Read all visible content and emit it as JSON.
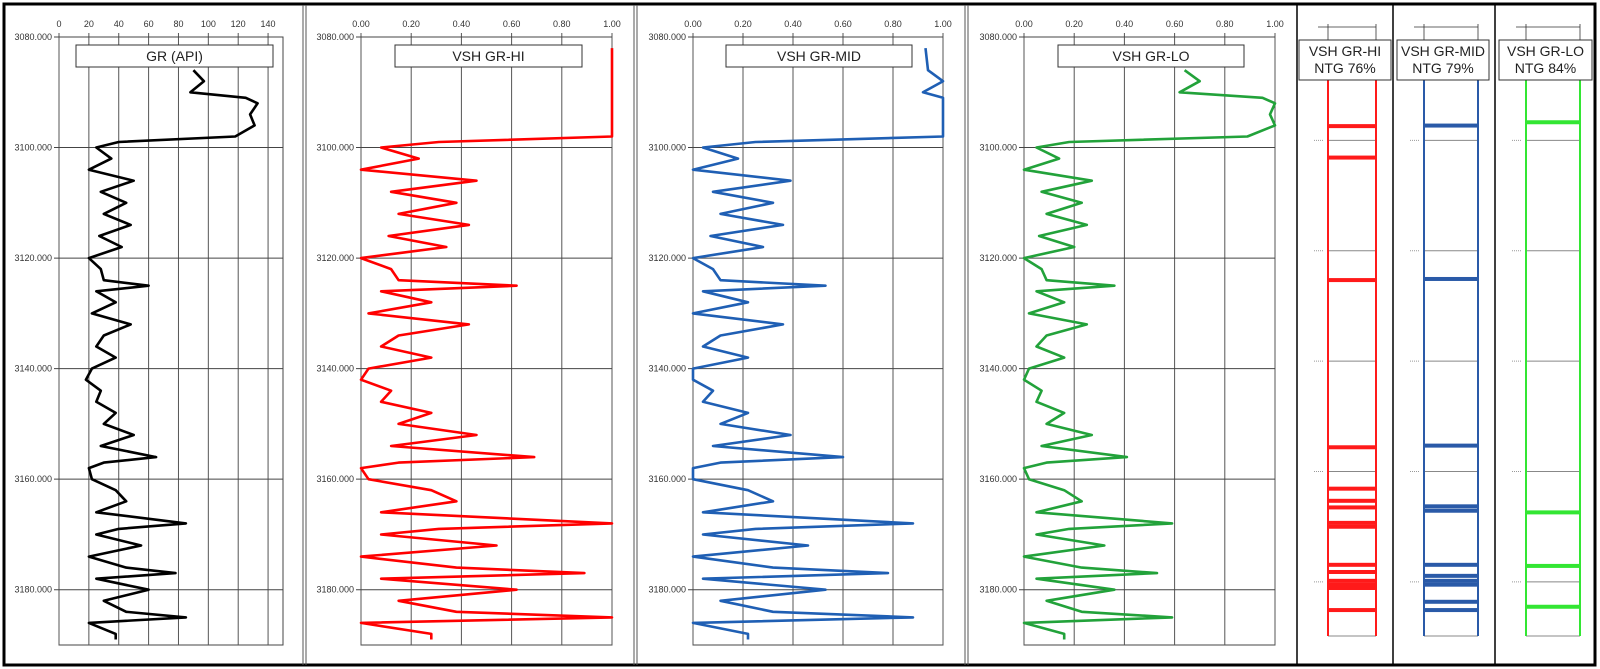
{
  "chart_data": [
    {
      "type": "line",
      "title": "GR (API)",
      "color": "#000000",
      "xlim": [
        0,
        150
      ],
      "xticks": [
        0,
        20,
        40,
        60,
        80,
        100,
        120,
        140
      ],
      "xtick_labels": [
        "0",
        "20",
        "40",
        "60",
        "80",
        "100",
        "120",
        "140"
      ],
      "ylim": [
        3080,
        3190
      ],
      "yticks": [
        3080,
        3100,
        3120,
        3140,
        3160,
        3180
      ],
      "ytick_labels": [
        "3080.000",
        "3100.000",
        "3120.000",
        "3140.000",
        "3160.000",
        "3180.000"
      ],
      "grid": true,
      "depth": [
        3086,
        3088,
        3090,
        3091,
        3092,
        3094,
        3096,
        3098,
        3099,
        3100,
        3102,
        3104,
        3106,
        3108,
        3110,
        3112,
        3114,
        3116,
        3118,
        3120,
        3122,
        3124,
        3125,
        3126,
        3128,
        3130,
        3132,
        3134,
        3136,
        3138,
        3140,
        3142,
        3144,
        3146,
        3148,
        3150,
        3152,
        3154,
        3156,
        3157,
        3158,
        3160,
        3162,
        3164,
        3166,
        3168,
        3169,
        3170,
        3172,
        3174,
        3176,
        3177,
        3178,
        3180,
        3182,
        3184,
        3185,
        3186,
        3188,
        3189
      ],
      "values": [
        90,
        97,
        88,
        125,
        133,
        128,
        131,
        118,
        40,
        25,
        35,
        20,
        50,
        28,
        45,
        30,
        48,
        27,
        42,
        20,
        28,
        30,
        60,
        25,
        38,
        22,
        48,
        30,
        25,
        38,
        22,
        18,
        28,
        25,
        38,
        30,
        50,
        28,
        65,
        30,
        20,
        22,
        38,
        45,
        25,
        85,
        40,
        25,
        55,
        20,
        45,
        78,
        25,
        60,
        30,
        45,
        85,
        20,
        38,
        38
      ]
    },
    {
      "type": "line",
      "title": "VSH GR-HI",
      "color": "#ff0000",
      "xlim": [
        0,
        1
      ],
      "xticks": [
        0,
        0.2,
        0.4,
        0.6,
        0.8,
        1.0
      ],
      "xtick_labels": [
        "0.00",
        "0.20",
        "0.40",
        "0.60",
        "0.80",
        "1.00"
      ],
      "ylim": [
        3080,
        3190
      ],
      "yticks": [
        3080,
        3100,
        3120,
        3140,
        3160,
        3180
      ],
      "ytick_labels": [
        "3080.000",
        "3100.000",
        "3120.000",
        "3140.000",
        "3160.000",
        "3180.000"
      ],
      "grid": true,
      "depth": [
        3082,
        3086,
        3088,
        3090,
        3091,
        3092,
        3094,
        3096,
        3098,
        3099,
        3100,
        3102,
        3104,
        3106,
        3108,
        3110,
        3112,
        3114,
        3116,
        3118,
        3120,
        3122,
        3124,
        3125,
        3126,
        3128,
        3130,
        3132,
        3134,
        3136,
        3138,
        3140,
        3142,
        3144,
        3146,
        3148,
        3150,
        3152,
        3154,
        3156,
        3157,
        3158,
        3160,
        3162,
        3164,
        3166,
        3168,
        3169,
        3170,
        3172,
        3174,
        3176,
        3177,
        3178,
        3180,
        3182,
        3184,
        3185,
        3186,
        3188,
        3189
      ],
      "values": [
        1,
        1,
        1,
        1,
        1,
        1,
        1,
        1,
        1,
        0.31,
        0.08,
        0.23,
        0,
        0.46,
        0.12,
        0.38,
        0.15,
        0.43,
        0.11,
        0.34,
        0,
        0.12,
        0.15,
        0.62,
        0.08,
        0.28,
        0.03,
        0.43,
        0.15,
        0.08,
        0.28,
        0.03,
        0,
        0.12,
        0.08,
        0.28,
        0.15,
        0.46,
        0.12,
        0.69,
        0.15,
        0,
        0.03,
        0.28,
        0.38,
        0.08,
        1,
        0.31,
        0.08,
        0.54,
        0,
        0.38,
        0.89,
        0.08,
        0.62,
        0.15,
        0.38,
        1,
        0,
        0.28,
        0.28
      ]
    },
    {
      "type": "line",
      "title": "VSH GR-MID",
      "color": "#1f5fb4",
      "xlim": [
        0,
        1
      ],
      "xticks": [
        0,
        0.2,
        0.4,
        0.6,
        0.8,
        1.0
      ],
      "xtick_labels": [
        "0.00",
        "0.20",
        "0.40",
        "0.60",
        "0.80",
        "1.00"
      ],
      "ylim": [
        3080,
        3190
      ],
      "yticks": [
        3080,
        3100,
        3120,
        3140,
        3160,
        3180
      ],
      "ytick_labels": [
        "3080.000",
        "3100.000",
        "3120.000",
        "3140.000",
        "3160.000",
        "3180.000"
      ],
      "grid": true,
      "depth": [
        3082,
        3086,
        3088,
        3090,
        3091,
        3092,
        3094,
        3096,
        3098,
        3099,
        3100,
        3102,
        3104,
        3106,
        3108,
        3110,
        3112,
        3114,
        3116,
        3118,
        3120,
        3122,
        3124,
        3125,
        3126,
        3128,
        3130,
        3132,
        3134,
        3136,
        3138,
        3140,
        3142,
        3144,
        3146,
        3148,
        3150,
        3152,
        3154,
        3156,
        3157,
        3158,
        3160,
        3162,
        3164,
        3166,
        3168,
        3169,
        3170,
        3172,
        3174,
        3176,
        3177,
        3178,
        3180,
        3182,
        3184,
        3185,
        3186,
        3188,
        3189
      ],
      "values": [
        0.93,
        0.94,
        1,
        0.92,
        1,
        1,
        1,
        1,
        1,
        0.25,
        0.04,
        0.18,
        0,
        0.39,
        0.08,
        0.32,
        0.11,
        0.36,
        0.07,
        0.28,
        0,
        0.08,
        0.11,
        0.53,
        0.04,
        0.22,
        0,
        0.36,
        0.11,
        0.04,
        0.22,
        0,
        0,
        0.08,
        0.04,
        0.22,
        0.11,
        0.39,
        0.08,
        0.6,
        0.11,
        0,
        0,
        0.22,
        0.32,
        0.04,
        0.88,
        0.25,
        0.04,
        0.46,
        0,
        0.32,
        0.78,
        0.04,
        0.53,
        0.11,
        0.32,
        0.88,
        0,
        0.22,
        0.22
      ]
    },
    {
      "type": "line",
      "title": "VSH GR-LO",
      "color": "#22a23a",
      "xlim": [
        0,
        1
      ],
      "xticks": [
        0,
        0.2,
        0.4,
        0.6,
        0.8,
        1.0
      ],
      "xtick_labels": [
        "0.00",
        "0.20",
        "0.40",
        "0.60",
        "0.80",
        "1.00"
      ],
      "ylim": [
        3080,
        3190
      ],
      "yticks": [
        3080,
        3100,
        3120,
        3140,
        3160,
        3180
      ],
      "ytick_labels": [
        "3080.000",
        "3100.000",
        "3120.000",
        "3140.000",
        "3160.000",
        "3180.000"
      ],
      "grid": true,
      "depth": [
        3086,
        3088,
        3090,
        3091,
        3092,
        3094,
        3096,
        3098,
        3099,
        3100,
        3102,
        3104,
        3106,
        3108,
        3110,
        3112,
        3114,
        3116,
        3118,
        3120,
        3122,
        3124,
        3125,
        3126,
        3128,
        3130,
        3132,
        3134,
        3136,
        3138,
        3140,
        3142,
        3144,
        3146,
        3148,
        3150,
        3152,
        3154,
        3156,
        3157,
        3158,
        3160,
        3162,
        3164,
        3166,
        3168,
        3169,
        3170,
        3172,
        3174,
        3176,
        3177,
        3178,
        3180,
        3182,
        3184,
        3185,
        3186,
        3188,
        3189
      ],
      "values": [
        0.64,
        0.7,
        0.62,
        0.95,
        1,
        0.98,
        1,
        0.89,
        0.18,
        0.05,
        0.14,
        0,
        0.27,
        0.07,
        0.23,
        0.09,
        0.25,
        0.06,
        0.2,
        0,
        0.07,
        0.09,
        0.36,
        0.05,
        0.16,
        0.02,
        0.25,
        0.09,
        0.05,
        0.16,
        0.02,
        0,
        0.07,
        0.05,
        0.16,
        0.09,
        0.27,
        0.07,
        0.41,
        0.09,
        0,
        0.02,
        0.16,
        0.23,
        0.05,
        0.59,
        0.18,
        0.05,
        0.32,
        0,
        0.23,
        0.53,
        0.05,
        0.36,
        0.09,
        0.23,
        0.59,
        0,
        0.16,
        0.16
      ]
    },
    {
      "type": "flag",
      "title": "VSH GR-HI",
      "subtitle": "NTG 76%",
      "ntg_percent": 76,
      "color": "#ff1a1a",
      "ylim": [
        3080,
        3190
      ],
      "shale_depths": [
        3097.6,
        3103.3,
        3125.5,
        3155.8,
        3163.3,
        3165.5,
        3166.7,
        3169.5,
        3170.2,
        3177.1,
        3178.4,
        3180,
        3180.7,
        3181.3,
        3185.3
      ]
    },
    {
      "type": "flag",
      "title": "VSH GR-MID",
      "subtitle": "NTG 79%",
      "ntg_percent": 79,
      "color": "#2a5aa8",
      "ylim": [
        3080,
        3190
      ],
      "shale_depths": [
        3097.5,
        3125.3,
        3155.5,
        3166.5,
        3167.3,
        3177.1,
        3179.1,
        3180,
        3180.7,
        3183.8,
        3185.3
      ]
    },
    {
      "type": "flag",
      "title": "VSH GR-LO",
      "subtitle": "NTG 84%",
      "ntg_percent": 84,
      "color": "#33e633",
      "ylim": [
        3080,
        3190
      ],
      "shale_depths": [
        3096.9,
        3167.6,
        3177.3,
        3184.7
      ]
    }
  ]
}
